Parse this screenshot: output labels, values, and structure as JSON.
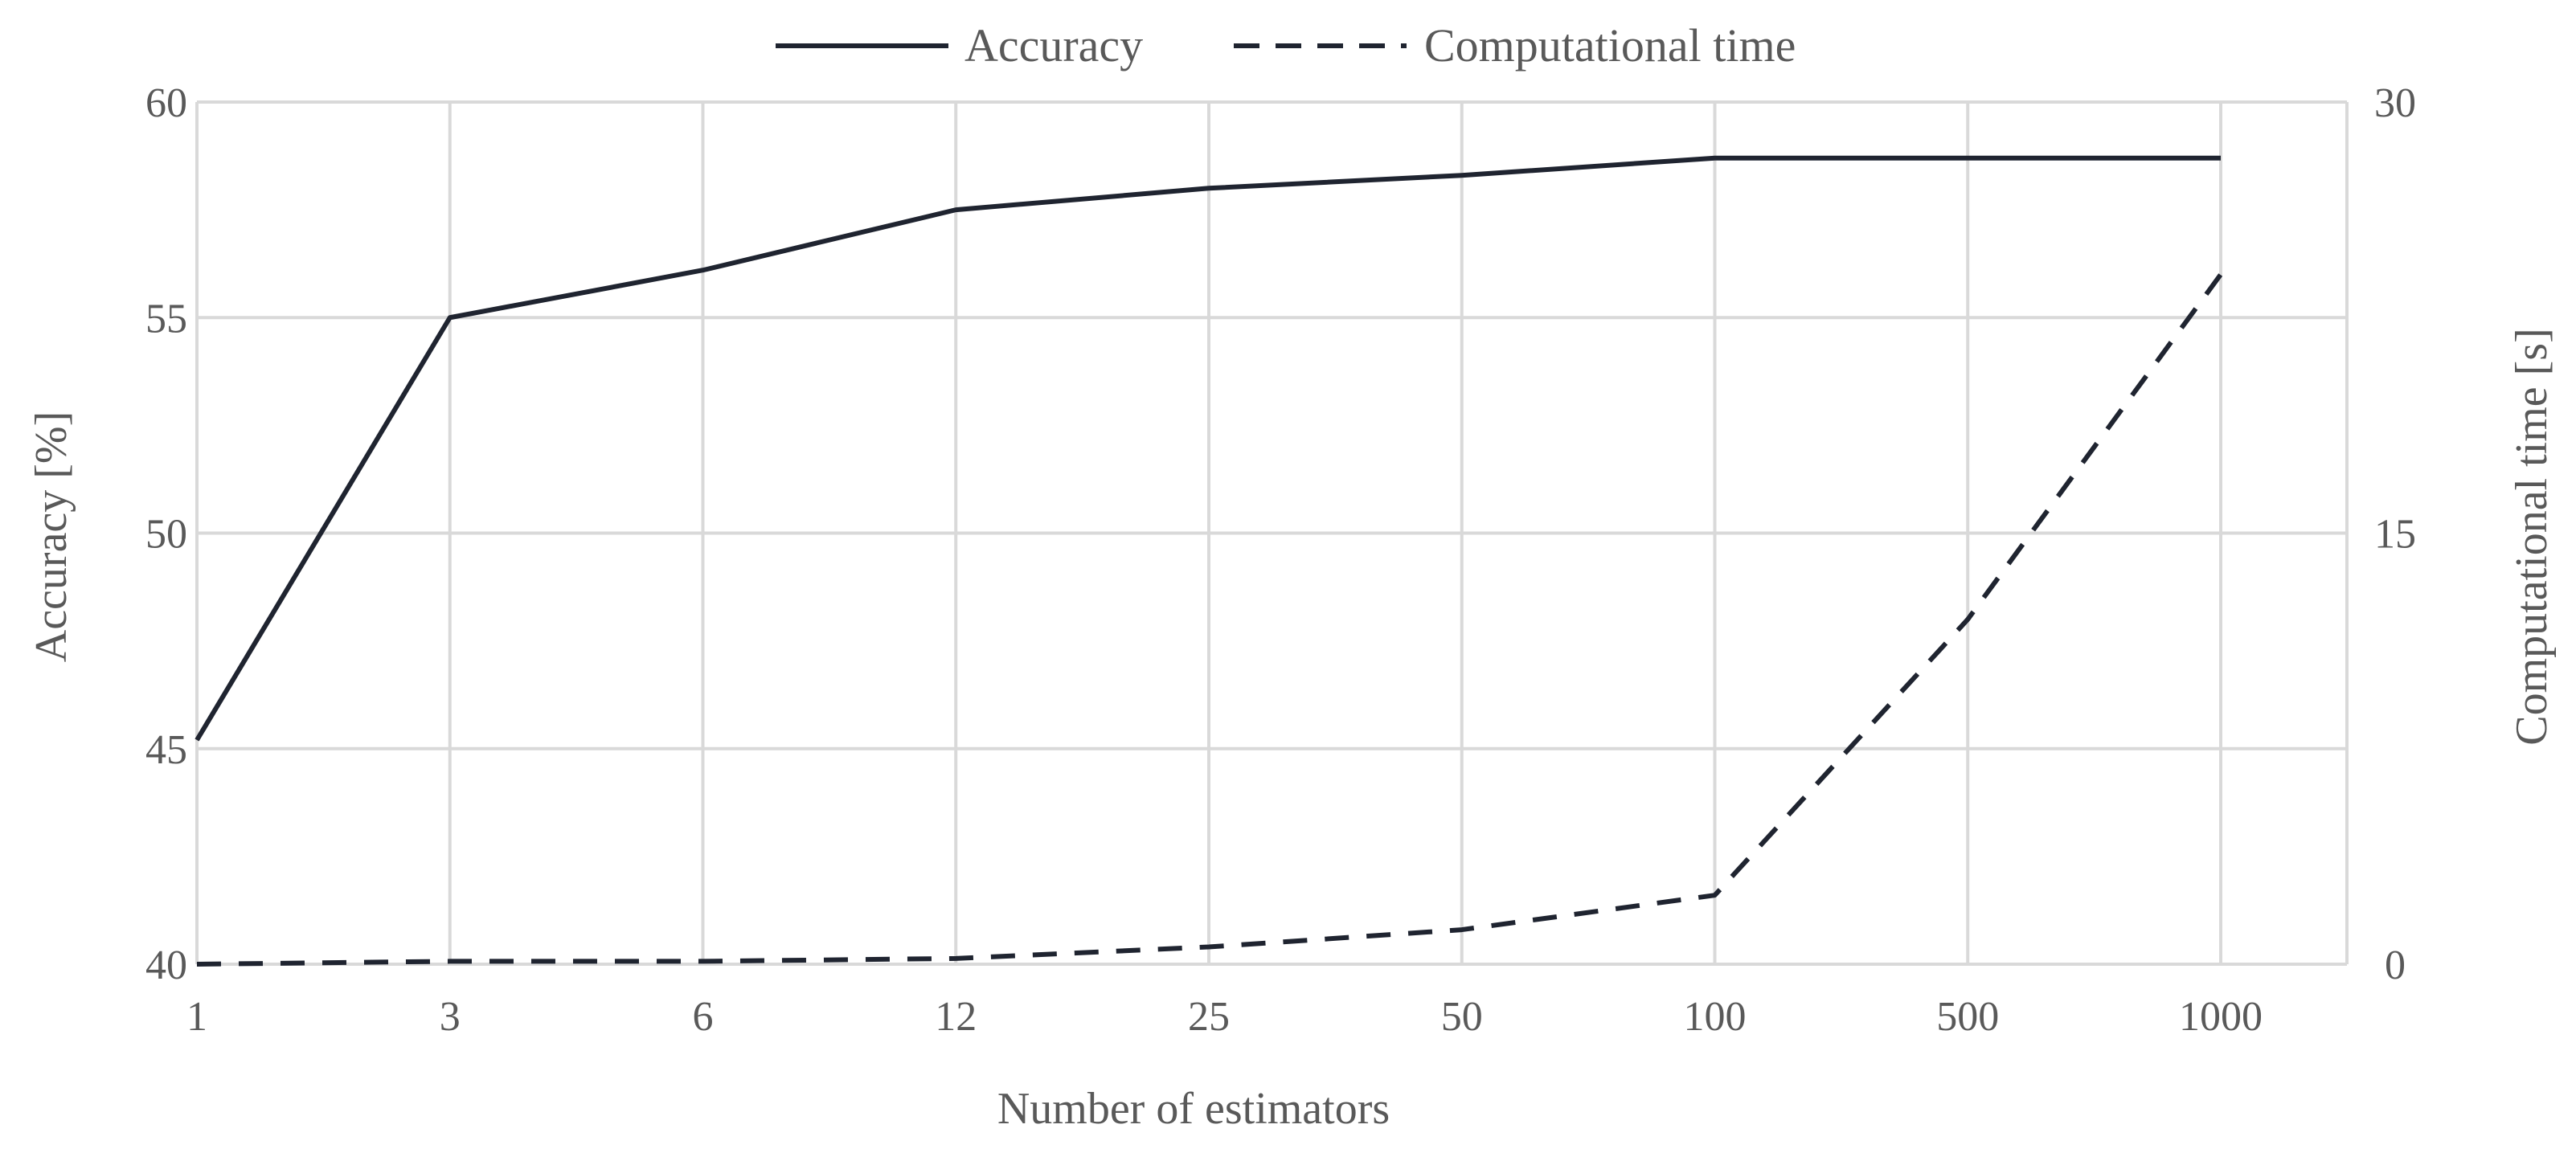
{
  "chart_data": {
    "type": "line",
    "categories": [
      "1",
      "3",
      "6",
      "12",
      "25",
      "50",
      "100",
      "500",
      "1000"
    ],
    "xlabel": "Number of estimators",
    "ylabel": "Accuracy [%]",
    "y2label": "Computational time [s]",
    "ylim": [
      40,
      60
    ],
    "y2lim": [
      0,
      30
    ],
    "yticks": [
      "40",
      "45",
      "50",
      "55",
      "60"
    ],
    "y2ticks": [
      "0",
      "15",
      "30"
    ],
    "grid": true,
    "legend_position": "top",
    "series": [
      {
        "name": "Accuracy",
        "axis": "left",
        "line_style": "solid",
        "color": "#1f2430",
        "values": [
          45.2,
          55.0,
          56.1,
          57.5,
          58.0,
          58.3,
          58.7,
          58.7,
          58.7
        ]
      },
      {
        "name": "Computational time",
        "axis": "right",
        "line_style": "dashed",
        "color": "#1f2430",
        "values": [
          0.0,
          0.1,
          0.1,
          0.2,
          0.6,
          1.2,
          2.4,
          12.0,
          24.0
        ]
      }
    ]
  }
}
